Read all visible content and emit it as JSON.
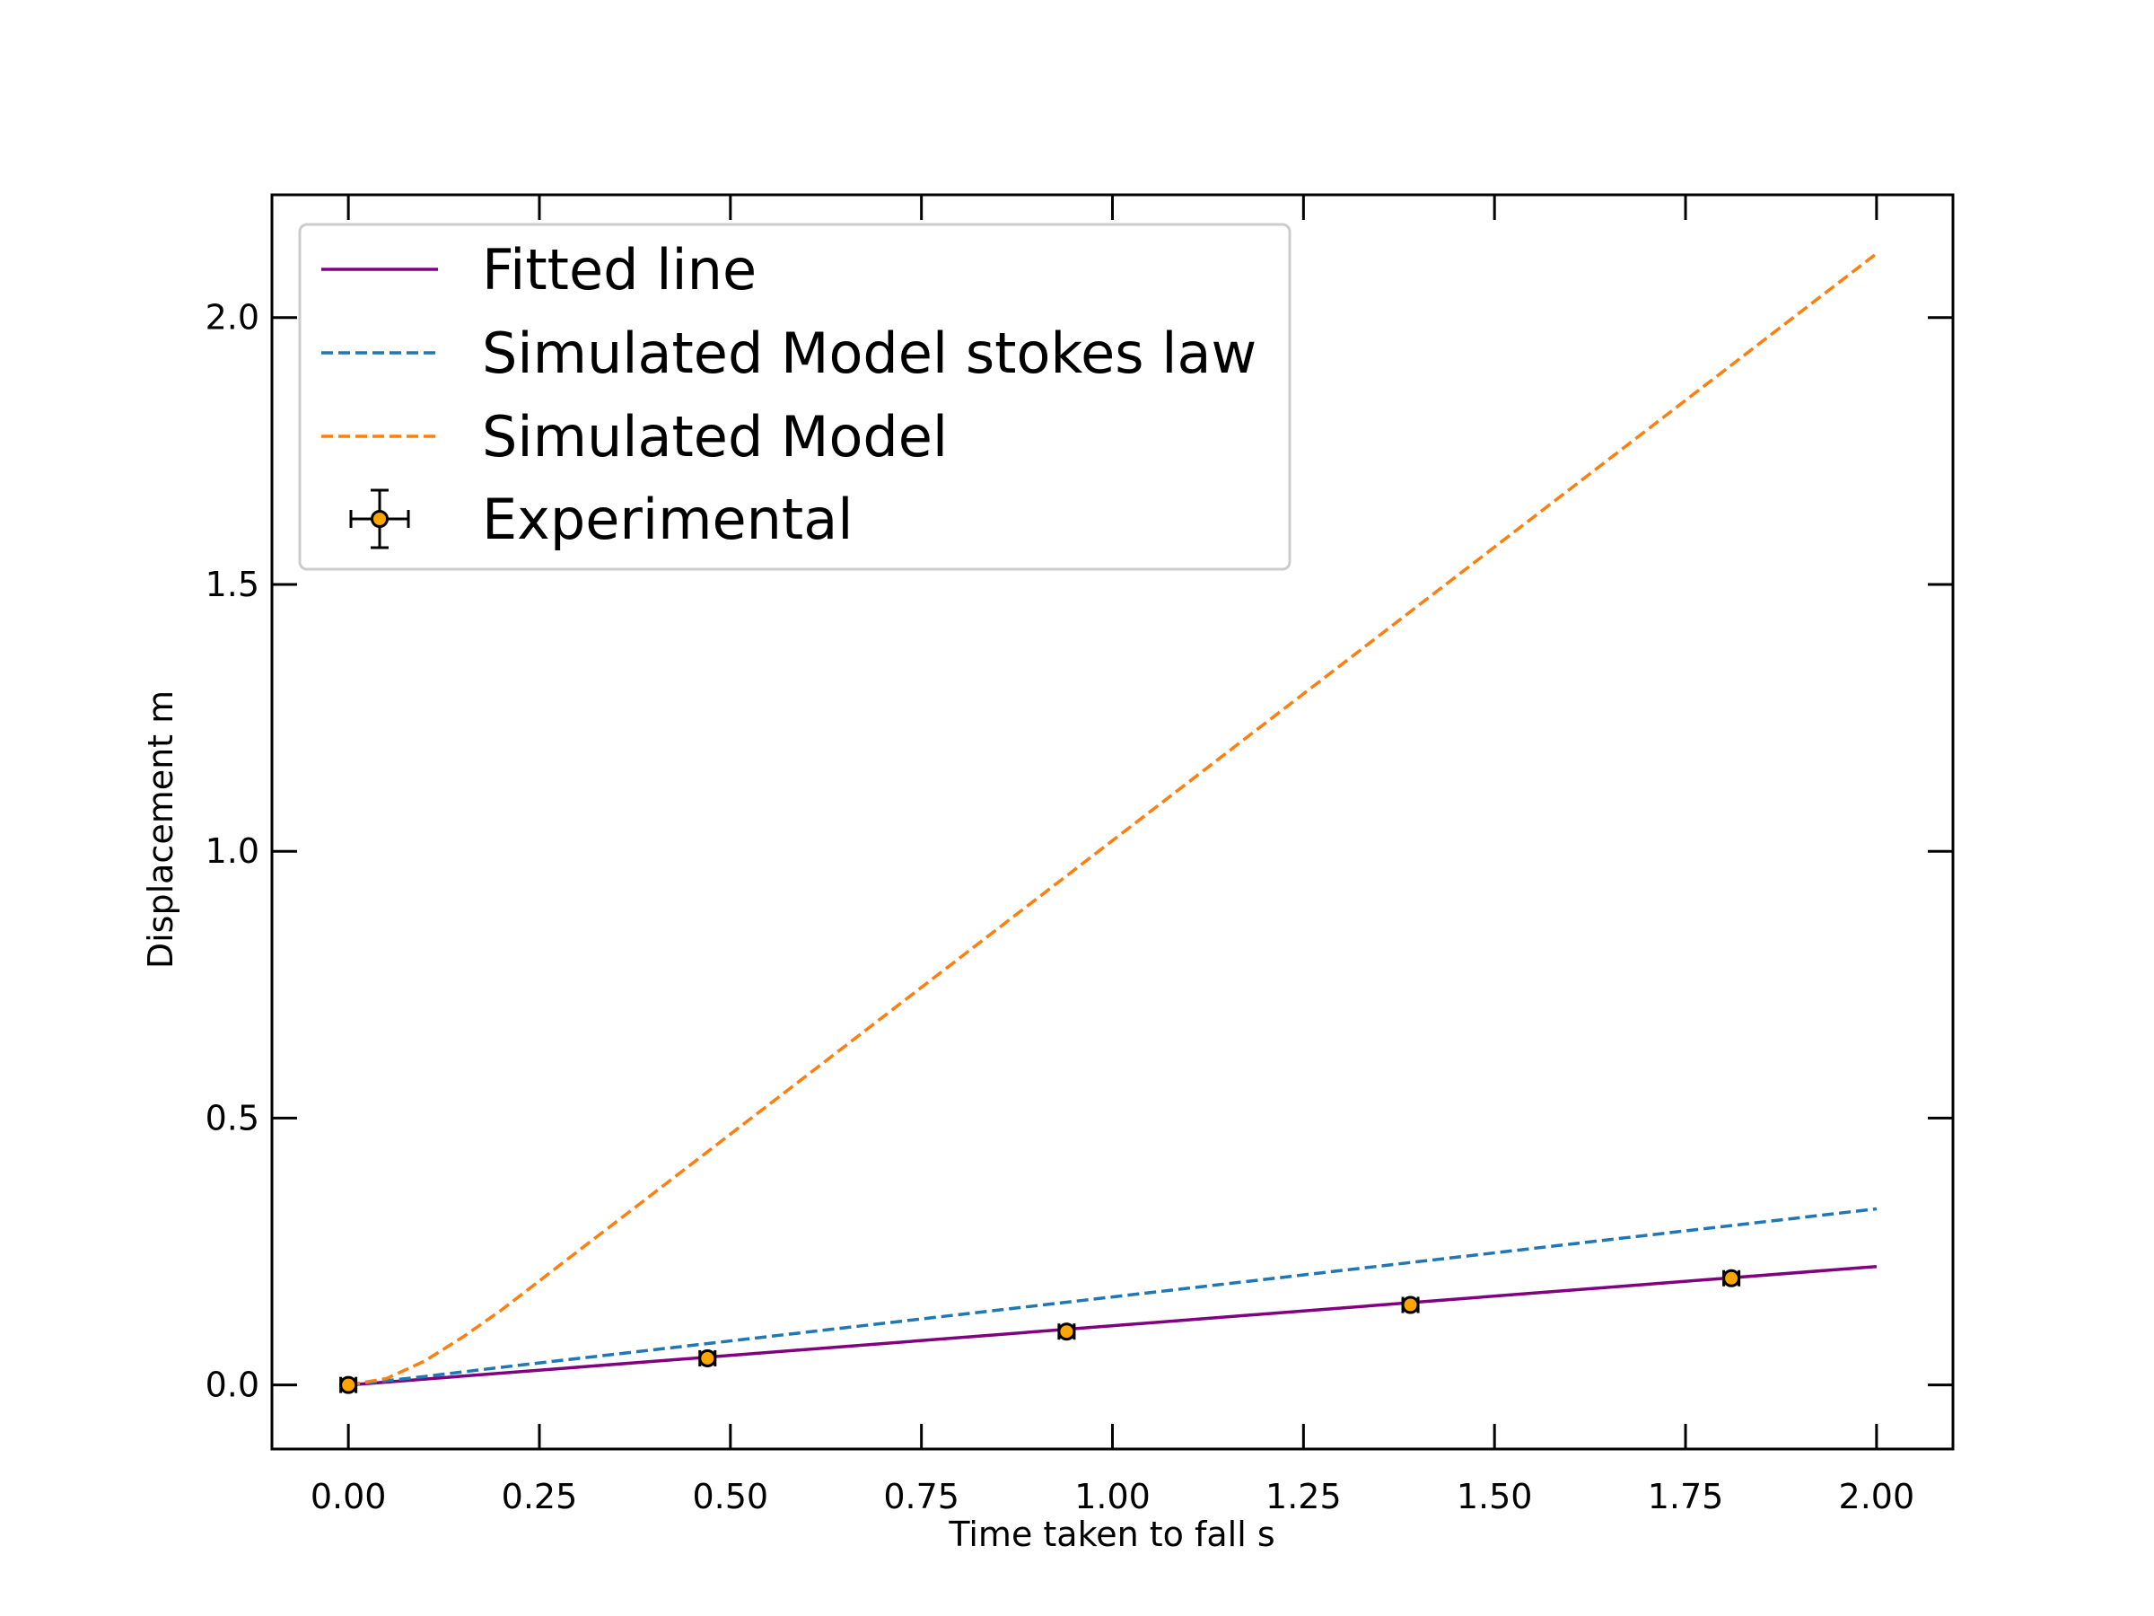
{
  "chart_data": {
    "type": "line",
    "title": "",
    "xlabel": "Time taken to fall s",
    "ylabel": "Displacement m",
    "xlim": [
      -0.1,
      2.1
    ],
    "ylim": [
      -0.12,
      2.23
    ],
    "xticks": [
      0.0,
      0.25,
      0.5,
      0.75,
      1.0,
      1.25,
      1.5,
      1.75,
      2.0
    ],
    "xtick_labels": [
      "0.00",
      "0.25",
      "0.50",
      "0.75",
      "1.00",
      "1.25",
      "1.50",
      "1.75",
      "2.00"
    ],
    "yticks": [
      0.0,
      0.5,
      1.0,
      1.5,
      2.0
    ],
    "ytick_labels": [
      "0.0",
      "0.5",
      "1.0",
      "1.5",
      "2.0"
    ],
    "grid": false,
    "legend_position": "top-left",
    "series": [
      {
        "name": "Fitted line",
        "style": "solid",
        "color": "#800080",
        "x": [
          0.0,
          2.0
        ],
        "y": [
          0.0,
          0.222
        ]
      },
      {
        "name": "Simulated Model stokes law",
        "style": "dashed",
        "color": "#1f77b4",
        "x": [
          0.0,
          0.1,
          0.2,
          0.4,
          0.6,
          0.8,
          1.0,
          1.2,
          1.4,
          1.6,
          1.8,
          2.0
        ],
        "y": [
          0.0,
          0.016,
          0.033,
          0.066,
          0.099,
          0.132,
          0.165,
          0.198,
          0.231,
          0.264,
          0.297,
          0.33
        ]
      },
      {
        "name": "Simulated Model",
        "style": "dashed",
        "color": "#ff7f0e",
        "x": [
          0.0,
          0.05,
          0.1,
          0.15,
          0.2,
          0.25,
          0.3,
          0.4,
          0.5,
          0.6,
          0.8,
          1.0,
          1.2,
          1.4,
          1.6,
          1.8,
          2.0
        ],
        "y": [
          0.0,
          0.012,
          0.045,
          0.09,
          0.14,
          0.195,
          0.25,
          0.36,
          0.47,
          0.58,
          0.8,
          1.02,
          1.24,
          1.46,
          1.68,
          1.9,
          2.12
        ]
      }
    ],
    "errorbar_series": {
      "name": "Experimental",
      "marker_color": "#ffa500",
      "edge_color": "#000000",
      "points": [
        {
          "x": 0.0,
          "y": 0.0,
          "xerr": 0.01,
          "yerr": 0.01
        },
        {
          "x": 0.47,
          "y": 0.05,
          "xerr": 0.01,
          "yerr": 0.01
        },
        {
          "x": 0.94,
          "y": 0.1,
          "xerr": 0.01,
          "yerr": 0.01
        },
        {
          "x": 1.39,
          "y": 0.15,
          "xerr": 0.01,
          "yerr": 0.01
        },
        {
          "x": 1.81,
          "y": 0.2,
          "xerr": 0.01,
          "yerr": 0.01
        }
      ]
    }
  }
}
